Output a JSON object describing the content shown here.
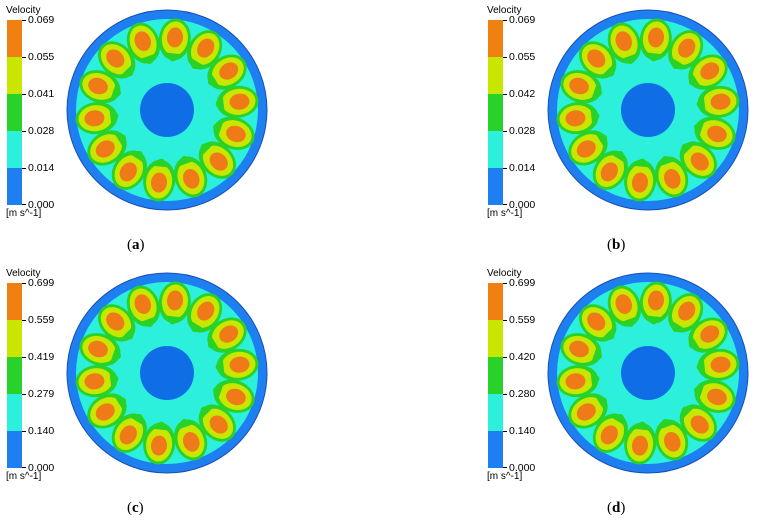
{
  "panels": [
    {
      "id": "a",
      "legend_title": "Velocity",
      "ticks": [
        "0.069",
        "0.055",
        "0.041",
        "0.028",
        "0.014",
        "0.000"
      ],
      "unit": "[m s^-1]",
      "caption_label": "a"
    },
    {
      "id": "b",
      "legend_title": "Velocity",
      "ticks": [
        "0.069",
        "0.055",
        "0.042",
        "0.028",
        "0.014",
        "0.000"
      ],
      "unit": "[m s^-1]",
      "caption_label": "b"
    },
    {
      "id": "c",
      "legend_title": "Velocity",
      "ticks": [
        "0.699",
        "0.559",
        "0.419",
        "0.279",
        "0.140",
        "0.000"
      ],
      "unit": "[m s^-1]",
      "caption_label": "c"
    },
    {
      "id": "d",
      "legend_title": "Velocity",
      "ticks": [
        "0.699",
        "0.559",
        "0.420",
        "0.280",
        "0.140",
        "0.000"
      ],
      "unit": "[m s^-1]",
      "caption_label": "d"
    }
  ],
  "colors": {
    "band_1": "#f08010",
    "band_2": "#c8e600",
    "band_3": "#28d228",
    "band_4": "#2cf0dc",
    "band_5": "#1e7ff0",
    "core": "#0f6ee6",
    "highspot": "#f07a18"
  },
  "contour": {
    "lobe_count": 14
  }
}
